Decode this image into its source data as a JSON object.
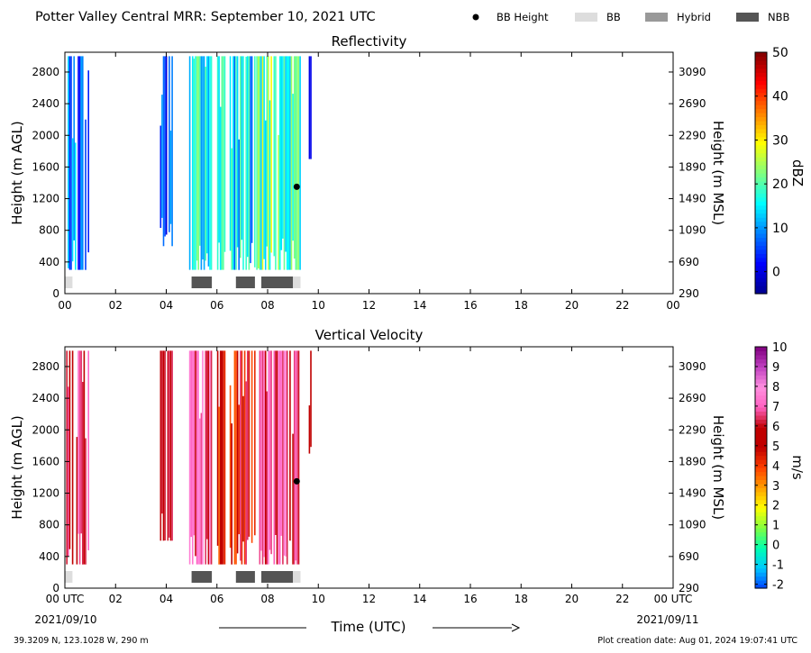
{
  "header": {
    "title": "Potter Valley Central MRR:  September 10, 2021 UTC",
    "legend": [
      {
        "label": "BB Height",
        "kind": "dot",
        "color": "#000000"
      },
      {
        "label": "BB",
        "kind": "box",
        "color": "#dddddd"
      },
      {
        "label": "Hybrid",
        "kind": "box",
        "color": "#999999"
      },
      {
        "label": "NBB",
        "kind": "box",
        "color": "#555555"
      }
    ]
  },
  "footer": {
    "location": "39.3209 N, 123.1028 W, 290 m",
    "creation": "Plot creation date: Aug 01, 2024 19:07:41 UTC",
    "xlabel": "Time (UTC)",
    "start_date": "2021/09/10",
    "end_date": "2021/09/11"
  },
  "chart_data": [
    {
      "type": "heatmap",
      "title": "Reflectivity",
      "ylabel": "Height (m AGL)",
      "ylabel_right": "Height (m MSL)",
      "colorbar_label": "dBZ",
      "x_ticks": [
        "00",
        "02",
        "04",
        "06",
        "08",
        "10",
        "12",
        "14",
        "16",
        "18",
        "20",
        "22",
        "00"
      ],
      "xlim": [
        0,
        24
      ],
      "ylim": [
        0,
        3050
      ],
      "y_ticks": [
        "0",
        "400",
        "800",
        "1200",
        "1600",
        "2000",
        "2400",
        "2800"
      ],
      "y_ticks_right": [
        "290",
        "690",
        "1090",
        "1490",
        "1890",
        "2290",
        "2690",
        "3090"
      ],
      "colorbar": {
        "min": -5,
        "max": 50,
        "ticks": [
          "0",
          "10",
          "20",
          "30",
          "40",
          "50"
        ],
        "colors": [
          "#00008f",
          "#0000ff",
          "#0080ff",
          "#00ffff",
          "#80ff80",
          "#ffff00",
          "#ff8000",
          "#ff0000",
          "#800000"
        ]
      },
      "bb_height_points": [
        {
          "time": 9.15,
          "height": 1350
        }
      ],
      "bb_type_bars": [
        {
          "type": "BB",
          "start": 0.0,
          "end": 0.3
        },
        {
          "type": "NBB",
          "start": 5.0,
          "end": 5.8
        },
        {
          "type": "NBB",
          "start": 6.75,
          "end": 7.5
        },
        {
          "type": "NBB",
          "start": 7.75,
          "end": 9.0
        },
        {
          "type": "BB",
          "start": 9.0,
          "end": 9.3
        }
      ],
      "data_blocks": [
        {
          "start": 0.05,
          "end": 0.95,
          "low": 300,
          "high": 3000,
          "min_val": 0,
          "max_val": 15
        },
        {
          "start": 3.75,
          "end": 4.25,
          "low": 600,
          "high": 3000,
          "min_val": -2,
          "max_val": 12
        },
        {
          "start": 4.9,
          "end": 5.8,
          "low": 300,
          "high": 3000,
          "min_val": 10,
          "max_val": 24
        },
        {
          "start": 6.0,
          "end": 6.3,
          "low": 300,
          "high": 3000,
          "min_val": 8,
          "max_val": 22
        },
        {
          "start": 6.5,
          "end": 7.5,
          "low": 300,
          "high": 3000,
          "min_val": 6,
          "max_val": 24
        },
        {
          "start": 7.55,
          "end": 9.3,
          "low": 300,
          "high": 3000,
          "min_val": 12,
          "max_val": 30
        },
        {
          "start": 9.62,
          "end": 9.72,
          "low": 1700,
          "high": 3000,
          "min_val": -2,
          "max_val": 4
        }
      ]
    },
    {
      "type": "heatmap",
      "title": "Vertical Velocity",
      "ylabel": "Height (m AGL)",
      "ylabel_right": "Height (m MSL)",
      "colorbar_label": "m/s",
      "x_ticks": [
        "00 UTC",
        "02",
        "04",
        "06",
        "08",
        "10",
        "12",
        "14",
        "16",
        "18",
        "20",
        "22",
        "00 UTC"
      ],
      "xlim": [
        0,
        24
      ],
      "ylim": [
        0,
        3050
      ],
      "y_ticks": [
        "0",
        "400",
        "800",
        "1200",
        "1600",
        "2000",
        "2400",
        "2800"
      ],
      "y_ticks_right": [
        "290",
        "690",
        "1090",
        "1490",
        "1890",
        "2290",
        "2690",
        "3090"
      ],
      "colorbar": {
        "min": -2.2,
        "max": 10,
        "ticks": [
          "-2",
          "-1",
          "0",
          "1",
          "2",
          "3",
          "4",
          "5",
          "6",
          "7",
          "8",
          "9",
          "10"
        ],
        "colors": [
          "#0040ff",
          "#00c8ff",
          "#00ffb0",
          "#80ff40",
          "#ffff00",
          "#ffa000",
          "#ff4000",
          "#c00000",
          "#c00000",
          "#ff60c0",
          "#ff90e0",
          "#c040c0",
          "#800080"
        ]
      },
      "bb_height_points": [
        {
          "time": 9.15,
          "height": 1350
        }
      ],
      "bb_type_bars": [
        {
          "type": "BB",
          "start": 0.0,
          "end": 0.3
        },
        {
          "type": "NBB",
          "start": 5.0,
          "end": 5.8
        },
        {
          "type": "NBB",
          "start": 6.75,
          "end": 7.5
        },
        {
          "type": "NBB",
          "start": 7.75,
          "end": 9.0
        },
        {
          "type": "BB",
          "start": 9.0,
          "end": 9.3
        }
      ],
      "data_blocks": [
        {
          "start": 0.05,
          "end": 0.95,
          "low": 300,
          "high": 3000,
          "min_val": 5.5,
          "max_val": 7.5
        },
        {
          "start": 3.75,
          "end": 4.25,
          "low": 600,
          "high": 3000,
          "min_val": 5.5,
          "max_val": 6.5
        },
        {
          "start": 4.9,
          "end": 5.8,
          "low": 300,
          "high": 3000,
          "min_val": 5.5,
          "max_val": 7.8
        },
        {
          "start": 6.0,
          "end": 6.3,
          "low": 300,
          "high": 3000,
          "min_val": 3.5,
          "max_val": 6.5
        },
        {
          "start": 6.5,
          "end": 7.5,
          "low": 300,
          "high": 3000,
          "min_val": 3.5,
          "max_val": 7.2
        },
        {
          "start": 7.55,
          "end": 9.3,
          "low": 300,
          "high": 3000,
          "min_val": 5.5,
          "max_val": 7.8
        },
        {
          "start": 9.62,
          "end": 9.72,
          "low": 1700,
          "high": 3000,
          "min_val": 4.5,
          "max_val": 5.5
        }
      ]
    }
  ]
}
